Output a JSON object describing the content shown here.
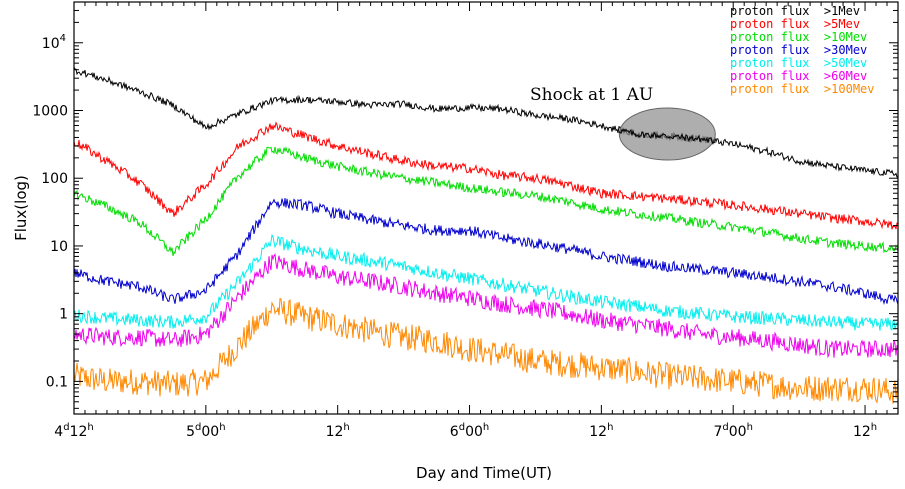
{
  "chart_data": {
    "type": "line",
    "xlabel": "Day and Time(UT)",
    "ylabel": "Flux(log)",
    "y_scale": "log",
    "ylim": [
      0.033,
      40000
    ],
    "xlim": [
      "4 12:00",
      "7 15:00"
    ],
    "x_ticks": [
      {
        "d": "4",
        "h": "12"
      },
      {
        "d": "5",
        "hh": "00"
      },
      {
        "h": "12"
      },
      {
        "d": "6",
        "hh": "00"
      },
      {
        "h": "12"
      },
      {
        "d": "7",
        "hh": "00"
      },
      {
        "h": "12"
      }
    ],
    "y_ticks": [
      "0.1",
      "1",
      "10",
      "100",
      "1000"
    ],
    "y_tick_top": {
      "base": "10",
      "exp": "4"
    },
    "annotation": {
      "text": "Shock at 1 AU",
      "x": "6 18:00",
      "y": 450
    },
    "series": [
      {
        "name": "proton flux  >1Mev",
        "color": "#000000",
        "noise": 0.05,
        "x": [
          "4 12:00",
          "4 15:00",
          "4 18:00",
          "4 21:00",
          "5 00:00",
          "5 03:00",
          "5 06:00",
          "5 09:00",
          "5 12:00",
          "5 15:00",
          "5 18:00",
          "5 21:00",
          "6 00:00",
          "6 03:00",
          "6 06:00",
          "6 09:00",
          "6 12:00",
          "6 15:00",
          "6 18:00",
          "6 21:00",
          "7 00:00",
          "7 03:00",
          "7 06:00",
          "7 09:00",
          "7 12:00",
          "7 15:00"
        ],
        "y": [
          4000,
          2800,
          1900,
          1200,
          560,
          900,
          1400,
          1450,
          1350,
          1200,
          1250,
          1050,
          1100,
          1050,
          850,
          750,
          600,
          450,
          420,
          380,
          320,
          250,
          180,
          150,
          130,
          115
        ]
      },
      {
        "name": "proton flux  >5Mev",
        "color": "#ff0000",
        "noise": 0.07,
        "x": [
          "4 12:00",
          "4 15:00",
          "4 18:00",
          "4 21:00",
          "5 00:00",
          "5 03:00",
          "5 06:00",
          "5 09:00",
          "5 12:00",
          "5 15:00",
          "5 18:00",
          "5 21:00",
          "6 00:00",
          "6 03:00",
          "6 06:00",
          "6 09:00",
          "6 12:00",
          "6 15:00",
          "6 18:00",
          "6 21:00",
          "7 00:00",
          "7 03:00",
          "7 06:00",
          "7 09:00",
          "7 12:00",
          "7 15:00"
        ],
        "y": [
          350,
          180,
          85,
          30,
          80,
          300,
          600,
          420,
          300,
          230,
          180,
          150,
          140,
          110,
          100,
          80,
          60,
          55,
          50,
          45,
          40,
          35,
          30,
          26,
          23,
          20
        ]
      },
      {
        "name": "proton flux  >10Mev",
        "color": "#00dd00",
        "noise": 0.07,
        "x": [
          "4 12:00",
          "4 15:00",
          "4 18:00",
          "4 21:00",
          "5 00:00",
          "5 03:00",
          "5 06:00",
          "5 09:00",
          "5 12:00",
          "5 15:00",
          "5 18:00",
          "5 21:00",
          "6 00:00",
          "6 03:00",
          "6 06:00",
          "6 09:00",
          "6 12:00",
          "6 15:00",
          "6 18:00",
          "6 21:00",
          "7 00:00",
          "7 03:00",
          "7 06:00",
          "7 09:00",
          "7 12:00",
          "7 15:00"
        ],
        "y": [
          60,
          38,
          22,
          8,
          25,
          110,
          280,
          200,
          150,
          120,
          100,
          85,
          72,
          62,
          55,
          45,
          35,
          30,
          26,
          22,
          19,
          16,
          13,
          11,
          10,
          9
        ]
      },
      {
        "name": "proton flux  >30Mev",
        "color": "#0000cc",
        "noise": 0.08,
        "x": [
          "4 12:00",
          "4 15:00",
          "4 18:00",
          "4 21:00",
          "5 00:00",
          "5 03:00",
          "5 06:00",
          "5 09:00",
          "5 12:00",
          "5 15:00",
          "5 18:00",
          "5 21:00",
          "6 00:00",
          "6 03:00",
          "6 06:00",
          "6 09:00",
          "6 12:00",
          "6 15:00",
          "6 18:00",
          "6 21:00",
          "7 00:00",
          "7 03:00",
          "7 06:00",
          "7 09:00",
          "7 12:00",
          "7 15:00"
        ],
        "y": [
          4,
          3,
          2.5,
          1.6,
          2.2,
          8,
          45,
          40,
          30,
          24,
          20,
          17,
          17,
          13,
          11,
          9,
          7,
          6,
          5,
          4.5,
          4,
          3.5,
          3,
          2.5,
          2,
          1.5
        ]
      },
      {
        "name": "proton flux  >50Mev",
        "color": "#00eeee",
        "noise": 0.1,
        "x": [
          "4 12:00",
          "4 15:00",
          "4 18:00",
          "4 21:00",
          "5 00:00",
          "5 03:00",
          "5 06:00",
          "5 09:00",
          "5 12:00",
          "5 15:00",
          "5 18:00",
          "5 21:00",
          "6 00:00",
          "6 03:00",
          "6 06:00",
          "6 09:00",
          "6 12:00",
          "6 15:00",
          "6 18:00",
          "6 21:00",
          "7 00:00",
          "7 03:00",
          "7 06:00",
          "7 09:00",
          "7 12:00",
          "7 15:00"
        ],
        "y": [
          0.95,
          0.85,
          0.8,
          0.75,
          0.9,
          3,
          12,
          9,
          7,
          6,
          5,
          4,
          3.3,
          2.7,
          2.2,
          1.8,
          1.5,
          1.3,
          1.1,
          1,
          0.9,
          0.85,
          0.8,
          0.75,
          0.7,
          0.7
        ]
      },
      {
        "name": "proton flux  >60Mev",
        "color": "#ee00ee",
        "noise": 0.13,
        "x": [
          "4 12:00",
          "4 15:00",
          "4 18:00",
          "4 21:00",
          "5 00:00",
          "5 03:00",
          "5 06:00",
          "5 09:00",
          "5 12:00",
          "5 15:00",
          "5 18:00",
          "5 21:00",
          "6 00:00",
          "6 03:00",
          "6 06:00",
          "6 09:00",
          "6 12:00",
          "6 15:00",
          "6 18:00",
          "6 21:00",
          "7 00:00",
          "7 03:00",
          "7 06:00",
          "7 09:00",
          "7 12:00",
          "7 15:00"
        ],
        "y": [
          0.5,
          0.45,
          0.45,
          0.4,
          0.5,
          1.8,
          6,
          4.5,
          3.5,
          3,
          2.5,
          2,
          1.7,
          1.4,
          1.2,
          1,
          0.8,
          0.7,
          0.6,
          0.5,
          0.45,
          0.4,
          0.35,
          0.3,
          0.3,
          0.3
        ]
      },
      {
        "name": "proton flux  >100Mev",
        "color": "#ff8800",
        "noise": 0.2,
        "x": [
          "4 12:00",
          "4 15:00",
          "4 18:00",
          "4 21:00",
          "5 00:00",
          "5 03:00",
          "5 06:00",
          "5 09:00",
          "5 12:00",
          "5 15:00",
          "5 18:00",
          "5 21:00",
          "6 00:00",
          "6 03:00",
          "6 06:00",
          "6 09:00",
          "6 12:00",
          "6 15:00",
          "6 18:00",
          "6 21:00",
          "7 00:00",
          "7 03:00",
          "7 06:00",
          "7 09:00",
          "7 12:00",
          "7 15:00"
        ],
        "y": [
          0.12,
          0.1,
          0.1,
          0.09,
          0.1,
          0.35,
          1.2,
          0.9,
          0.7,
          0.55,
          0.45,
          0.4,
          0.3,
          0.25,
          0.2,
          0.18,
          0.16,
          0.14,
          0.12,
          0.11,
          0.1,
          0.09,
          0.08,
          0.08,
          0.08,
          0.07
        ]
      }
    ]
  }
}
